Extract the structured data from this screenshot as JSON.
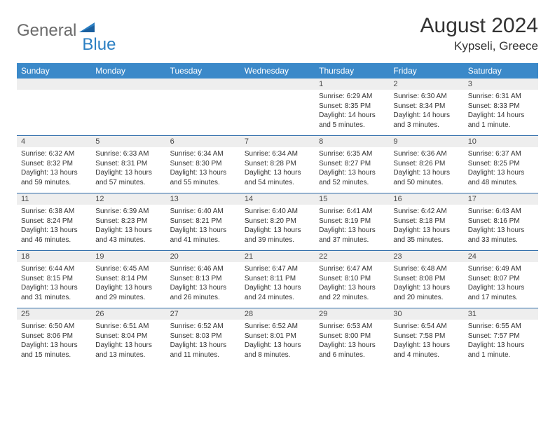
{
  "logo": {
    "text_gray": "General",
    "text_blue": "Blue"
  },
  "title": "August 2024",
  "location": "Kypseli, Greece",
  "colors": {
    "header_bg": "#3b89c9",
    "header_text": "#ffffff",
    "daynum_bg": "#eeeeee",
    "week_border": "#2b6aa8",
    "logo_gray": "#6b6b6b",
    "logo_blue": "#2b7fc3"
  },
  "day_headers": [
    "Sunday",
    "Monday",
    "Tuesday",
    "Wednesday",
    "Thursday",
    "Friday",
    "Saturday"
  ],
  "weeks": [
    [
      null,
      null,
      null,
      null,
      {
        "n": "1",
        "sr": "Sunrise: 6:29 AM",
        "ss": "Sunset: 8:35 PM",
        "d1": "Daylight: 14 hours",
        "d2": "and 5 minutes."
      },
      {
        "n": "2",
        "sr": "Sunrise: 6:30 AM",
        "ss": "Sunset: 8:34 PM",
        "d1": "Daylight: 14 hours",
        "d2": "and 3 minutes."
      },
      {
        "n": "3",
        "sr": "Sunrise: 6:31 AM",
        "ss": "Sunset: 8:33 PM",
        "d1": "Daylight: 14 hours",
        "d2": "and 1 minute."
      }
    ],
    [
      {
        "n": "4",
        "sr": "Sunrise: 6:32 AM",
        "ss": "Sunset: 8:32 PM",
        "d1": "Daylight: 13 hours",
        "d2": "and 59 minutes."
      },
      {
        "n": "5",
        "sr": "Sunrise: 6:33 AM",
        "ss": "Sunset: 8:31 PM",
        "d1": "Daylight: 13 hours",
        "d2": "and 57 minutes."
      },
      {
        "n": "6",
        "sr": "Sunrise: 6:34 AM",
        "ss": "Sunset: 8:30 PM",
        "d1": "Daylight: 13 hours",
        "d2": "and 55 minutes."
      },
      {
        "n": "7",
        "sr": "Sunrise: 6:34 AM",
        "ss": "Sunset: 8:28 PM",
        "d1": "Daylight: 13 hours",
        "d2": "and 54 minutes."
      },
      {
        "n": "8",
        "sr": "Sunrise: 6:35 AM",
        "ss": "Sunset: 8:27 PM",
        "d1": "Daylight: 13 hours",
        "d2": "and 52 minutes."
      },
      {
        "n": "9",
        "sr": "Sunrise: 6:36 AM",
        "ss": "Sunset: 8:26 PM",
        "d1": "Daylight: 13 hours",
        "d2": "and 50 minutes."
      },
      {
        "n": "10",
        "sr": "Sunrise: 6:37 AM",
        "ss": "Sunset: 8:25 PM",
        "d1": "Daylight: 13 hours",
        "d2": "and 48 minutes."
      }
    ],
    [
      {
        "n": "11",
        "sr": "Sunrise: 6:38 AM",
        "ss": "Sunset: 8:24 PM",
        "d1": "Daylight: 13 hours",
        "d2": "and 46 minutes."
      },
      {
        "n": "12",
        "sr": "Sunrise: 6:39 AM",
        "ss": "Sunset: 8:23 PM",
        "d1": "Daylight: 13 hours",
        "d2": "and 43 minutes."
      },
      {
        "n": "13",
        "sr": "Sunrise: 6:40 AM",
        "ss": "Sunset: 8:21 PM",
        "d1": "Daylight: 13 hours",
        "d2": "and 41 minutes."
      },
      {
        "n": "14",
        "sr": "Sunrise: 6:40 AM",
        "ss": "Sunset: 8:20 PM",
        "d1": "Daylight: 13 hours",
        "d2": "and 39 minutes."
      },
      {
        "n": "15",
        "sr": "Sunrise: 6:41 AM",
        "ss": "Sunset: 8:19 PM",
        "d1": "Daylight: 13 hours",
        "d2": "and 37 minutes."
      },
      {
        "n": "16",
        "sr": "Sunrise: 6:42 AM",
        "ss": "Sunset: 8:18 PM",
        "d1": "Daylight: 13 hours",
        "d2": "and 35 minutes."
      },
      {
        "n": "17",
        "sr": "Sunrise: 6:43 AM",
        "ss": "Sunset: 8:16 PM",
        "d1": "Daylight: 13 hours",
        "d2": "and 33 minutes."
      }
    ],
    [
      {
        "n": "18",
        "sr": "Sunrise: 6:44 AM",
        "ss": "Sunset: 8:15 PM",
        "d1": "Daylight: 13 hours",
        "d2": "and 31 minutes."
      },
      {
        "n": "19",
        "sr": "Sunrise: 6:45 AM",
        "ss": "Sunset: 8:14 PM",
        "d1": "Daylight: 13 hours",
        "d2": "and 29 minutes."
      },
      {
        "n": "20",
        "sr": "Sunrise: 6:46 AM",
        "ss": "Sunset: 8:13 PM",
        "d1": "Daylight: 13 hours",
        "d2": "and 26 minutes."
      },
      {
        "n": "21",
        "sr": "Sunrise: 6:47 AM",
        "ss": "Sunset: 8:11 PM",
        "d1": "Daylight: 13 hours",
        "d2": "and 24 minutes."
      },
      {
        "n": "22",
        "sr": "Sunrise: 6:47 AM",
        "ss": "Sunset: 8:10 PM",
        "d1": "Daylight: 13 hours",
        "d2": "and 22 minutes."
      },
      {
        "n": "23",
        "sr": "Sunrise: 6:48 AM",
        "ss": "Sunset: 8:08 PM",
        "d1": "Daylight: 13 hours",
        "d2": "and 20 minutes."
      },
      {
        "n": "24",
        "sr": "Sunrise: 6:49 AM",
        "ss": "Sunset: 8:07 PM",
        "d1": "Daylight: 13 hours",
        "d2": "and 17 minutes."
      }
    ],
    [
      {
        "n": "25",
        "sr": "Sunrise: 6:50 AM",
        "ss": "Sunset: 8:06 PM",
        "d1": "Daylight: 13 hours",
        "d2": "and 15 minutes."
      },
      {
        "n": "26",
        "sr": "Sunrise: 6:51 AM",
        "ss": "Sunset: 8:04 PM",
        "d1": "Daylight: 13 hours",
        "d2": "and 13 minutes."
      },
      {
        "n": "27",
        "sr": "Sunrise: 6:52 AM",
        "ss": "Sunset: 8:03 PM",
        "d1": "Daylight: 13 hours",
        "d2": "and 11 minutes."
      },
      {
        "n": "28",
        "sr": "Sunrise: 6:52 AM",
        "ss": "Sunset: 8:01 PM",
        "d1": "Daylight: 13 hours",
        "d2": "and 8 minutes."
      },
      {
        "n": "29",
        "sr": "Sunrise: 6:53 AM",
        "ss": "Sunset: 8:00 PM",
        "d1": "Daylight: 13 hours",
        "d2": "and 6 minutes."
      },
      {
        "n": "30",
        "sr": "Sunrise: 6:54 AM",
        "ss": "Sunset: 7:58 PM",
        "d1": "Daylight: 13 hours",
        "d2": "and 4 minutes."
      },
      {
        "n": "31",
        "sr": "Sunrise: 6:55 AM",
        "ss": "Sunset: 7:57 PM",
        "d1": "Daylight: 13 hours",
        "d2": "and 1 minute."
      }
    ]
  ]
}
